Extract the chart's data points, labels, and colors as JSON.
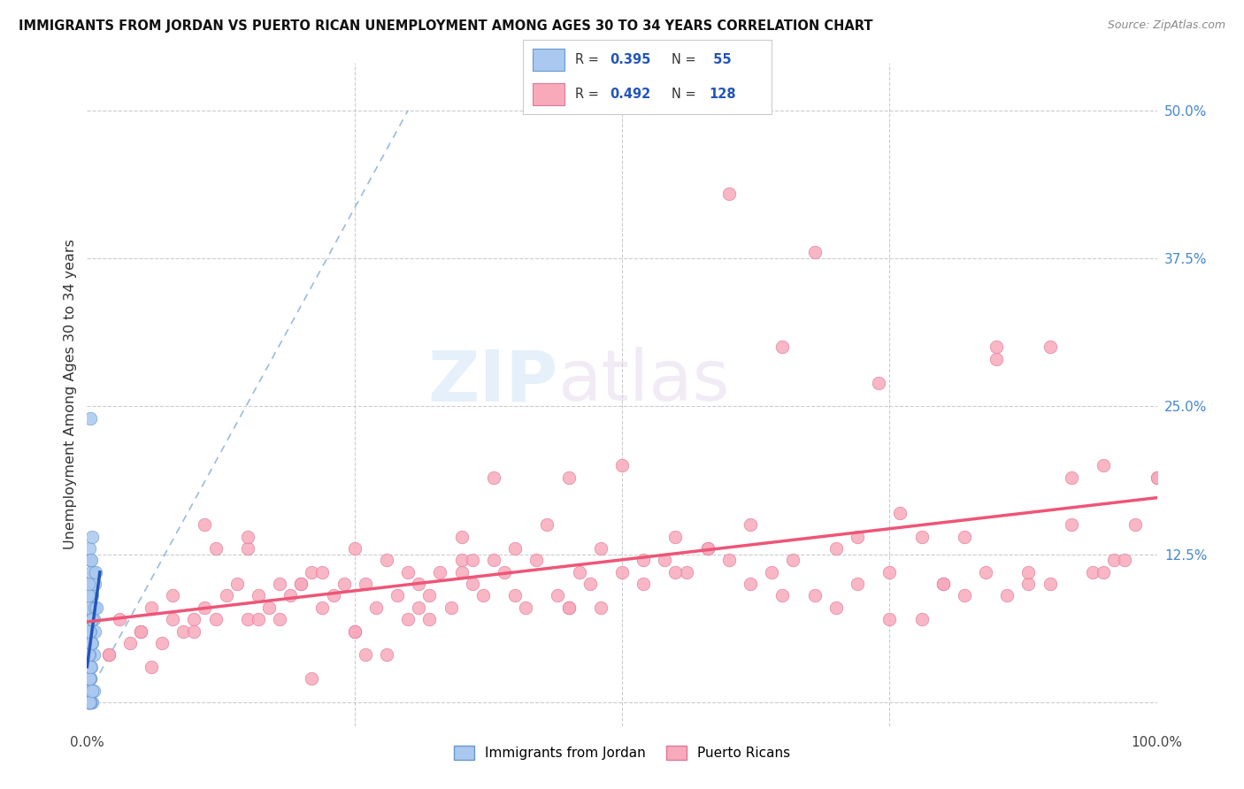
{
  "title": "IMMIGRANTS FROM JORDAN VS PUERTO RICAN UNEMPLOYMENT AMONG AGES 30 TO 34 YEARS CORRELATION CHART",
  "source": "Source: ZipAtlas.com",
  "ylabel": "Unemployment Among Ages 30 to 34 years",
  "xlim": [
    0,
    1.0
  ],
  "ylim": [
    -0.02,
    0.54
  ],
  "yticks_right": [
    0.0,
    0.125,
    0.25,
    0.375,
    0.5
  ],
  "ytick_right_labels": [
    "",
    "12.5%",
    "25.0%",
    "37.5%",
    "50.0%"
  ],
  "jordan_color": "#aac8f0",
  "jordan_edge": "#6699cc",
  "puerto_color": "#f8aabb",
  "puerto_edge": "#dd7799",
  "jordan_line_color": "#2255bb",
  "jordan_dash_color": "#99bbdd",
  "puerto_line_color": "#ee5577",
  "watermark_zip": "ZIP",
  "watermark_atlas": "atlas",
  "jordan_scatter_x": [
    0.001,
    0.002,
    0.001,
    0.003,
    0.002,
    0.004,
    0.002,
    0.005,
    0.003,
    0.006,
    0.001,
    0.002,
    0.001,
    0.007,
    0.004,
    0.003,
    0.002,
    0.005,
    0.001,
    0.006,
    0.001,
    0.002,
    0.003,
    0.001,
    0.004,
    0.002,
    0.005,
    0.003,
    0.006,
    0.001,
    0.001,
    0.007,
    0.004,
    0.003,
    0.002,
    0.005,
    0.001,
    0.006,
    0.001,
    0.002,
    0.003,
    0.001,
    0.004,
    0.002,
    0.005,
    0.007,
    0.003,
    0.001,
    0.001,
    0.008,
    0.004,
    0.003,
    0.002,
    0.005,
    0.009
  ],
  "jordan_scatter_y": [
    0.0,
    0.0,
    0.02,
    0.0,
    0.01,
    0.0,
    0.03,
    0.0,
    0.02,
    0.04,
    0.0,
    0.05,
    0.0,
    0.06,
    0.07,
    0.0,
    0.08,
    0.09,
    0.1,
    0.11,
    0.0,
    0.01,
    0.02,
    0.0,
    0.03,
    0.04,
    0.05,
    0.06,
    0.07,
    0.08,
    0.09,
    0.1,
    0.11,
    0.12,
    0.13,
    0.14,
    0.0,
    0.01,
    0.0,
    0.02,
    0.03,
    0.04,
    0.05,
    0.06,
    0.07,
    0.08,
    0.24,
    0.09,
    0.1,
    0.11,
    0.12,
    0.0,
    0.0,
    0.01,
    0.08
  ],
  "puerto_scatter_x": [
    0.02,
    0.03,
    0.04,
    0.05,
    0.06,
    0.07,
    0.08,
    0.09,
    0.1,
    0.11,
    0.12,
    0.13,
    0.14,
    0.15,
    0.16,
    0.17,
    0.18,
    0.19,
    0.2,
    0.21,
    0.22,
    0.23,
    0.24,
    0.25,
    0.26,
    0.27,
    0.28,
    0.29,
    0.3,
    0.31,
    0.32,
    0.33,
    0.34,
    0.35,
    0.36,
    0.37,
    0.38,
    0.39,
    0.4,
    0.41,
    0.42,
    0.43,
    0.44,
    0.45,
    0.46,
    0.47,
    0.48,
    0.5,
    0.52,
    0.54,
    0.56,
    0.58,
    0.6,
    0.62,
    0.64,
    0.66,
    0.68,
    0.7,
    0.72,
    0.74,
    0.76,
    0.78,
    0.8,
    0.82,
    0.84,
    0.86,
    0.88,
    0.9,
    0.92,
    0.94,
    0.96,
    0.98,
    1.0,
    0.05,
    0.1,
    0.15,
    0.2,
    0.25,
    0.3,
    0.35,
    0.4,
    0.45,
    0.5,
    0.55,
    0.6,
    0.65,
    0.7,
    0.75,
    0.8,
    0.85,
    0.9,
    0.95,
    1.0,
    0.08,
    0.12,
    0.18,
    0.22,
    0.28,
    0.32,
    0.38,
    0.48,
    0.52,
    0.58,
    0.62,
    0.68,
    0.72,
    0.78,
    0.82,
    0.88,
    0.92,
    0.97,
    0.15,
    0.25,
    0.35,
    0.45,
    0.55,
    0.65,
    0.75,
    0.85,
    0.95,
    0.02,
    0.06,
    0.11,
    0.16,
    0.21,
    0.26,
    0.31,
    0.36
  ],
  "puerto_scatter_y": [
    0.04,
    0.07,
    0.05,
    0.06,
    0.08,
    0.05,
    0.09,
    0.06,
    0.07,
    0.08,
    0.07,
    0.09,
    0.1,
    0.07,
    0.09,
    0.08,
    0.1,
    0.09,
    0.1,
    0.11,
    0.08,
    0.09,
    0.1,
    0.13,
    0.1,
    0.08,
    0.12,
    0.09,
    0.11,
    0.1,
    0.09,
    0.11,
    0.08,
    0.12,
    0.1,
    0.09,
    0.19,
    0.11,
    0.13,
    0.08,
    0.12,
    0.15,
    0.09,
    0.19,
    0.11,
    0.1,
    0.13,
    0.11,
    0.1,
    0.12,
    0.11,
    0.13,
    0.43,
    0.15,
    0.11,
    0.12,
    0.38,
    0.13,
    0.14,
    0.27,
    0.16,
    0.14,
    0.1,
    0.09,
    0.11,
    0.09,
    0.1,
    0.3,
    0.19,
    0.11,
    0.12,
    0.15,
    0.19,
    0.06,
    0.06,
    0.13,
    0.1,
    0.06,
    0.07,
    0.11,
    0.09,
    0.08,
    0.2,
    0.11,
    0.12,
    0.09,
    0.08,
    0.07,
    0.1,
    0.29,
    0.1,
    0.11,
    0.19,
    0.07,
    0.13,
    0.07,
    0.11,
    0.04,
    0.07,
    0.12,
    0.08,
    0.12,
    0.13,
    0.1,
    0.09,
    0.1,
    0.07,
    0.14,
    0.11,
    0.15,
    0.12,
    0.14,
    0.06,
    0.14,
    0.08,
    0.14,
    0.3,
    0.11,
    0.3,
    0.2,
    0.04,
    0.03,
    0.15,
    0.07,
    0.02,
    0.04,
    0.08,
    0.12
  ]
}
